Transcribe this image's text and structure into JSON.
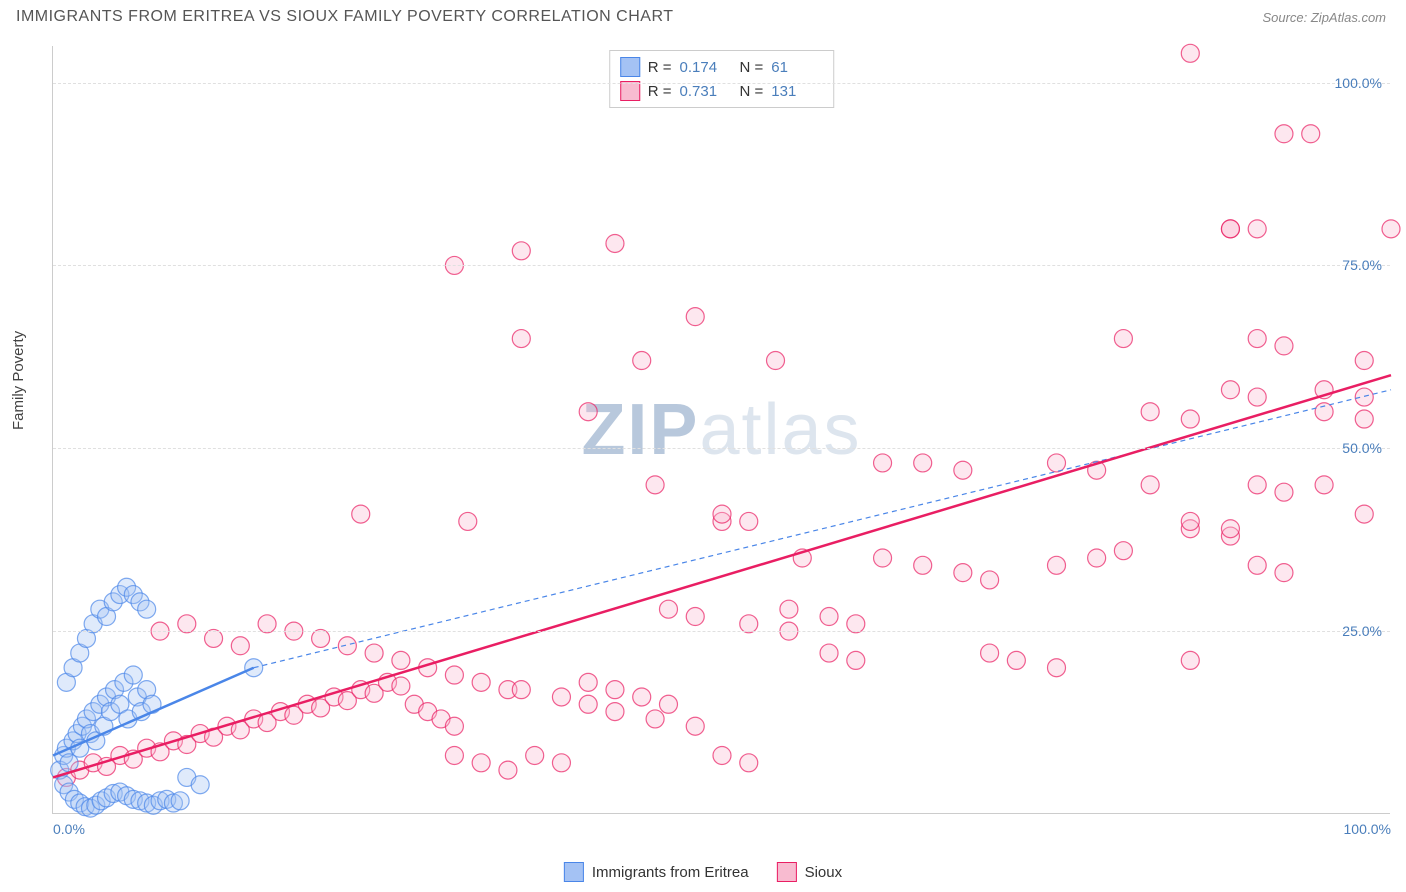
{
  "header": {
    "title": "IMMIGRANTS FROM ERITREA VS SIOUX FAMILY POVERTY CORRELATION CHART",
    "source": "Source: ZipAtlas.com"
  },
  "ylabel": "Family Poverty",
  "watermark": {
    "bold": "ZIP",
    "light": "atlas"
  },
  "chart": {
    "type": "scatter",
    "xlim": [
      0,
      100
    ],
    "ylim": [
      0,
      105
    ],
    "yticks": [
      {
        "value": 25,
        "label": "25.0%"
      },
      {
        "value": 50,
        "label": "50.0%"
      },
      {
        "value": 75,
        "label": "75.0%"
      },
      {
        "value": 100,
        "label": "100.0%"
      }
    ],
    "xticks": [
      {
        "value": 0,
        "label": "0.0%",
        "align": "left"
      },
      {
        "value": 100,
        "label": "100.0%",
        "align": "right"
      }
    ],
    "grid_color": "#e0e0e0",
    "background_color": "#ffffff",
    "axis_color": "#cccccc",
    "tick_color": "#4a7ebb",
    "marker_radius": 9,
    "marker_opacity": 0.35,
    "marker_stroke_width": 1.2,
    "series": [
      {
        "name": "Immigrants from Eritrea",
        "color": "#4a86e8",
        "fill": "#a4c2f4",
        "stats": {
          "R": "0.174",
          "N": "61"
        },
        "trend": {
          "x1": 0,
          "y1": 8,
          "x2": 15,
          "y2": 20,
          "width": 2.5,
          "dash": ""
        },
        "trend_ext": {
          "x1": 15,
          "y1": 20,
          "x2": 100,
          "y2": 58,
          "width": 1.2,
          "dash": "5,4"
        },
        "points": [
          [
            0.5,
            6
          ],
          [
            0.8,
            8
          ],
          [
            1,
            9
          ],
          [
            1.2,
            7
          ],
          [
            1.5,
            10
          ],
          [
            1.8,
            11
          ],
          [
            2,
            9
          ],
          [
            2.2,
            12
          ],
          [
            2.5,
            13
          ],
          [
            2.8,
            11
          ],
          [
            3,
            14
          ],
          [
            3.2,
            10
          ],
          [
            3.5,
            15
          ],
          [
            3.8,
            12
          ],
          [
            4,
            16
          ],
          [
            4.3,
            14
          ],
          [
            4.6,
            17
          ],
          [
            5,
            15
          ],
          [
            5.3,
            18
          ],
          [
            5.6,
            13
          ],
          [
            6,
            19
          ],
          [
            6.3,
            16
          ],
          [
            6.6,
            14
          ],
          [
            7,
            17
          ],
          [
            7.4,
            15
          ],
          [
            1,
            18
          ],
          [
            1.5,
            20
          ],
          [
            2,
            22
          ],
          [
            2.5,
            24
          ],
          [
            3,
            26
          ],
          [
            3.5,
            28
          ],
          [
            4,
            27
          ],
          [
            4.5,
            29
          ],
          [
            5,
            30
          ],
          [
            5.5,
            31
          ],
          [
            6,
            30
          ],
          [
            6.5,
            29
          ],
          [
            7,
            28
          ],
          [
            0.8,
            4
          ],
          [
            1.2,
            3
          ],
          [
            1.6,
            2
          ],
          [
            2,
            1.5
          ],
          [
            2.4,
            1
          ],
          [
            2.8,
            0.8
          ],
          [
            3.2,
            1.2
          ],
          [
            3.6,
            1.8
          ],
          [
            4,
            2.2
          ],
          [
            4.5,
            2.8
          ],
          [
            5,
            3
          ],
          [
            5.5,
            2.5
          ],
          [
            6,
            2
          ],
          [
            6.5,
            1.8
          ],
          [
            7,
            1.5
          ],
          [
            7.5,
            1.2
          ],
          [
            8,
            1.8
          ],
          [
            8.5,
            2
          ],
          [
            9,
            1.5
          ],
          [
            9.5,
            1.8
          ],
          [
            15,
            20
          ],
          [
            10,
            5
          ],
          [
            11,
            4
          ]
        ]
      },
      {
        "name": "Sioux",
        "color": "#e91e63",
        "fill": "#f8bbd0",
        "stats": {
          "R": "0.731",
          "N": "131"
        },
        "trend": {
          "x1": 0,
          "y1": 5,
          "x2": 100,
          "y2": 60,
          "width": 2.5,
          "dash": ""
        },
        "points": [
          [
            1,
            5
          ],
          [
            2,
            6
          ],
          [
            3,
            7
          ],
          [
            4,
            6.5
          ],
          [
            5,
            8
          ],
          [
            6,
            7.5
          ],
          [
            7,
            9
          ],
          [
            8,
            8.5
          ],
          [
            9,
            10
          ],
          [
            10,
            9.5
          ],
          [
            11,
            11
          ],
          [
            12,
            10.5
          ],
          [
            13,
            12
          ],
          [
            14,
            11.5
          ],
          [
            15,
            13
          ],
          [
            16,
            12.5
          ],
          [
            17,
            14
          ],
          [
            18,
            13.5
          ],
          [
            19,
            15
          ],
          [
            20,
            14.5
          ],
          [
            21,
            16
          ],
          [
            22,
            15.5
          ],
          [
            23,
            17
          ],
          [
            24,
            16.5
          ],
          [
            25,
            18
          ],
          [
            26,
            17.5
          ],
          [
            27,
            15
          ],
          [
            28,
            14
          ],
          [
            29,
            13
          ],
          [
            30,
            12
          ],
          [
            8,
            25
          ],
          [
            10,
            26
          ],
          [
            12,
            24
          ],
          [
            14,
            23
          ],
          [
            16,
            26
          ],
          [
            18,
            25
          ],
          [
            20,
            24
          ],
          [
            22,
            23
          ],
          [
            24,
            22
          ],
          [
            26,
            21
          ],
          [
            28,
            20
          ],
          [
            30,
            19
          ],
          [
            32,
            18
          ],
          [
            34,
            17
          ],
          [
            23,
            41
          ],
          [
            35,
            77
          ],
          [
            42,
            78
          ],
          [
            31,
            40
          ],
          [
            35,
            17
          ],
          [
            38,
            16
          ],
          [
            40,
            15
          ],
          [
            42,
            14
          ],
          [
            45,
            13
          ],
          [
            48,
            12
          ],
          [
            50,
            8
          ],
          [
            52,
            7
          ],
          [
            44,
            62
          ],
          [
            46,
            28
          ],
          [
            48,
            27
          ],
          [
            50,
            40
          ],
          [
            52,
            26
          ],
          [
            55,
            25
          ],
          [
            48,
            68
          ],
          [
            50,
            41
          ],
          [
            52,
            40
          ],
          [
            55,
            28
          ],
          [
            58,
            27
          ],
          [
            60,
            26
          ],
          [
            54,
            62
          ],
          [
            56,
            35
          ],
          [
            58,
            22
          ],
          [
            60,
            21
          ],
          [
            62,
            48
          ],
          [
            62,
            35
          ],
          [
            65,
            34
          ],
          [
            68,
            33
          ],
          [
            70,
            32
          ],
          [
            65,
            48
          ],
          [
            68,
            47
          ],
          [
            70,
            22
          ],
          [
            72,
            21
          ],
          [
            75,
            34
          ],
          [
            78,
            35
          ],
          [
            80,
            36
          ],
          [
            75,
            48
          ],
          [
            78,
            47
          ],
          [
            80,
            65
          ],
          [
            82,
            45
          ],
          [
            85,
            39
          ],
          [
            88,
            38
          ],
          [
            82,
            55
          ],
          [
            85,
            54
          ],
          [
            88,
            80
          ],
          [
            90,
            45
          ],
          [
            92,
            44
          ],
          [
            95,
            58
          ],
          [
            98,
            57
          ],
          [
            90,
            65
          ],
          [
            92,
            64
          ],
          [
            95,
            55
          ],
          [
            98,
            54
          ],
          [
            85,
            104
          ],
          [
            92,
            93
          ],
          [
            94,
            93
          ],
          [
            100,
            80
          ],
          [
            88,
            58
          ],
          [
            90,
            57
          ],
          [
            85,
            21
          ],
          [
            95,
            45
          ],
          [
            98,
            41
          ],
          [
            30,
            75
          ],
          [
            35,
            65
          ],
          [
            40,
            55
          ],
          [
            45,
            45
          ],
          [
            88,
            80
          ],
          [
            90,
            80
          ],
          [
            85,
            40
          ],
          [
            88,
            39
          ],
          [
            90,
            34
          ],
          [
            92,
            33
          ],
          [
            30,
            8
          ],
          [
            32,
            7
          ],
          [
            34,
            6
          ],
          [
            36,
            8
          ],
          [
            38,
            7
          ],
          [
            40,
            18
          ],
          [
            42,
            17
          ],
          [
            44,
            16
          ],
          [
            46,
            15
          ],
          [
            98,
            62
          ],
          [
            75,
            20
          ]
        ]
      }
    ]
  },
  "bottom_legend": [
    {
      "label": "Immigrants from Eritrea",
      "fill": "#a4c2f4",
      "stroke": "#4a86e8"
    },
    {
      "label": "Sioux",
      "fill": "#f8bbd0",
      "stroke": "#e91e63"
    }
  ]
}
